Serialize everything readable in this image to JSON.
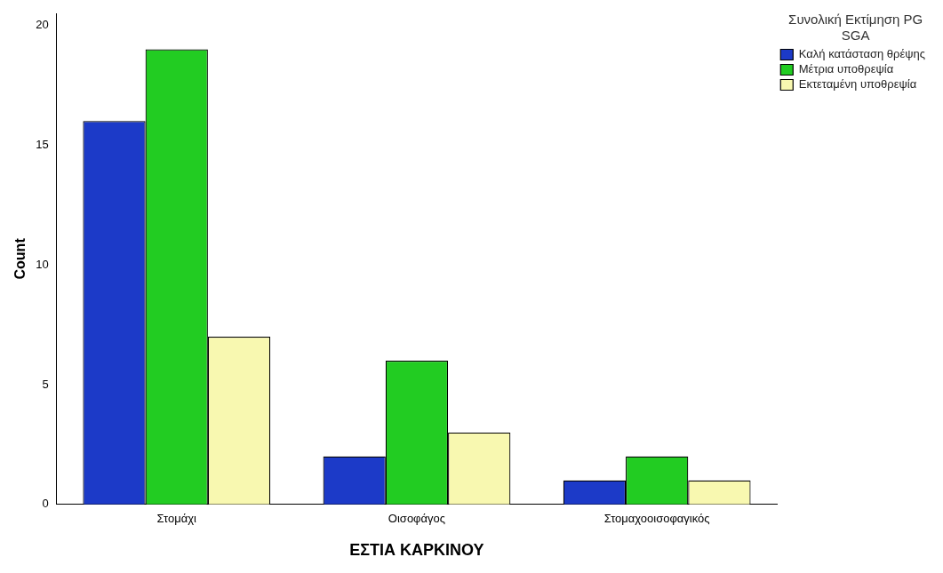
{
  "chart_data": {
    "type": "bar",
    "xlabel": "ΕΣΤΙΑ ΚΑΡΚΙΝΟΥ",
    "ylabel": "Count",
    "legend_title": "Συνολική Εκτίμηση PG SGA",
    "categories": [
      "Στομάχι",
      "Οισοφάγος",
      "Στομαχοοισοφαγικός"
    ],
    "series": [
      {
        "name": "Καλή κατάσταση θρέψης",
        "color": "#1c3ac8",
        "values": [
          16,
          2,
          1
        ]
      },
      {
        "name": "Μέτρια υποθρεψία",
        "color": "#22cc22",
        "values": [
          19,
          6,
          2
        ]
      },
      {
        "name": "Εκτεταμένη υποθρεψία",
        "color": "#f8f8b0",
        "values": [
          7,
          3,
          1
        ]
      }
    ],
    "ylim": [
      0,
      20.5
    ],
    "yticks": [
      0,
      5,
      10,
      15,
      20
    ],
    "grid": false,
    "legend": "top right"
  }
}
